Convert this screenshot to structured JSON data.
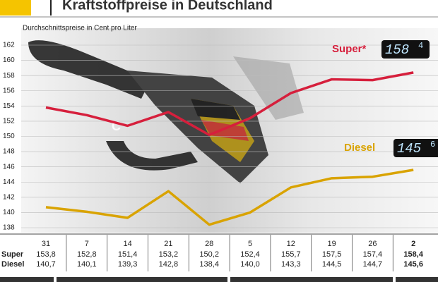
{
  "chart_data": {
    "type": "line",
    "title": "Kraftstoffpreise in Deutschland",
    "subtitle": "Durchschnittspreise in Cent pro Liter",
    "categories": [
      "31",
      "7",
      "14",
      "21",
      "28",
      "5",
      "12",
      "19",
      "26",
      "2"
    ],
    "row_labels": [
      "Super",
      "Diesel"
    ],
    "series": [
      {
        "name": "Super*",
        "color": "#d61f3c",
        "values": [
          153.8,
          152.8,
          151.4,
          153.2,
          150.2,
          152.4,
          155.7,
          157.5,
          157.4,
          158.4
        ],
        "value_labels": [
          "153,8",
          "152,8",
          "151,4",
          "153,2",
          "150,2",
          "152,4",
          "155,7",
          "157,5",
          "157,4",
          "158,4"
        ],
        "badge": {
          "main": "158",
          "decimal": "4"
        }
      },
      {
        "name": "Diesel",
        "color": "#d9a300",
        "values": [
          140.7,
          140.1,
          139.3,
          142.8,
          138.4,
          140.0,
          143.3,
          144.5,
          144.7,
          145.6
        ],
        "value_labels": [
          "140,7",
          "140,1",
          "139,3",
          "142,8",
          "138,4",
          "140,0",
          "143,3",
          "144,5",
          "144,7",
          "145,6"
        ],
        "badge": {
          "main": "145",
          "decimal": "6"
        }
      }
    ],
    "ylim": [
      138,
      162
    ],
    "yticks": [
      138,
      140,
      142,
      144,
      146,
      148,
      150,
      152,
      154,
      156,
      158,
      160,
      162
    ],
    "grid": true
  }
}
